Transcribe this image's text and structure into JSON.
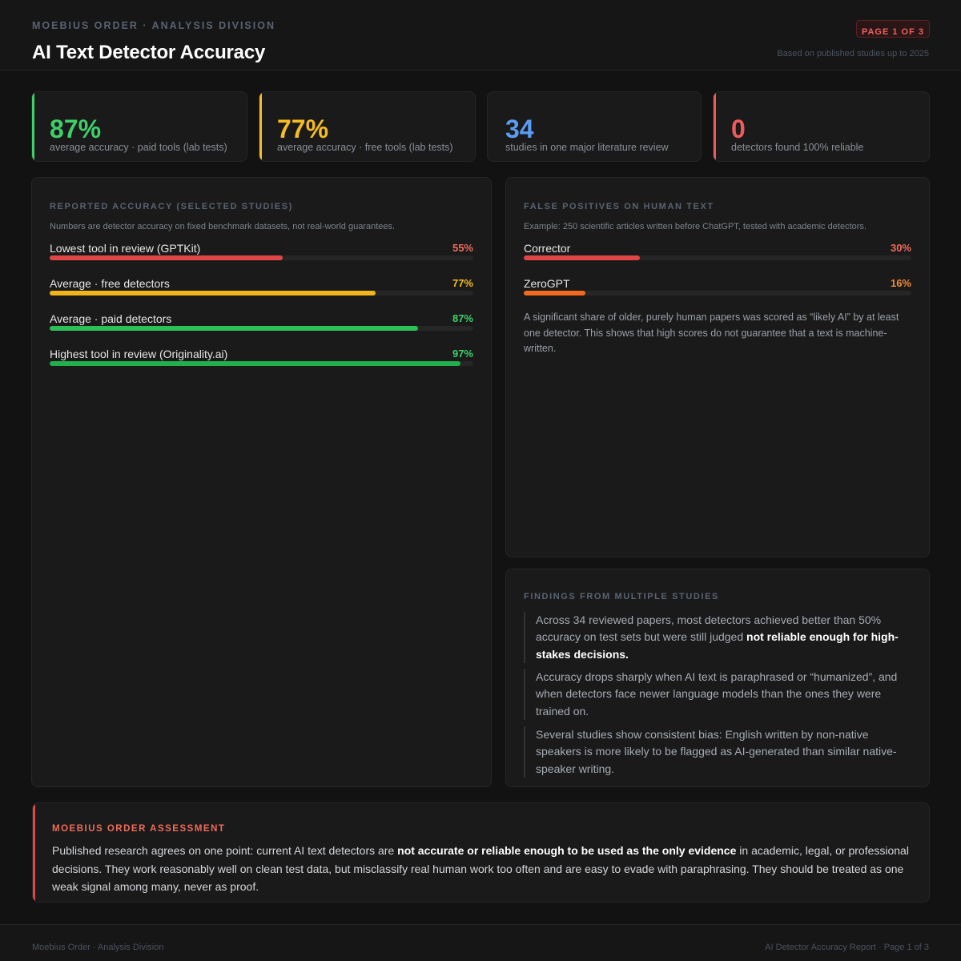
{
  "header": {
    "org": "MOEBIUS ORDER · ANALYSIS DIVISION",
    "title": "AI Text Detector Accuracy",
    "page_badge": "PAGE 1 OF 3",
    "based_on": "Based on published studies up to 2025"
  },
  "kpis": [
    {
      "value": "87%",
      "label": "average accuracy · paid tools (lab tests)",
      "color": "#3fcf6b"
    },
    {
      "value": "77%",
      "label": "average accuracy · free tools (lab tests)",
      "color": "#f5bd22"
    },
    {
      "value": "34",
      "label": "studies in one major literature review",
      "color": "#5b9cf2"
    },
    {
      "value": "0",
      "label": "detectors found 100% reliable",
      "color": "#ef5b5b"
    }
  ],
  "accuracy_panel": {
    "title": "REPORTED ACCURACY (SELECTED STUDIES)",
    "subtitle": "Numbers are detector accuracy on fixed benchmark datasets, not real-world guarantees.",
    "bars": [
      {
        "name": "Lowest tool in review (GPTKit)",
        "label": "55%",
        "value": 55,
        "color": "#e04646",
        "label_color": "#ef6b5b"
      },
      {
        "name": "Average · free detectors",
        "label": "77%",
        "value": 77,
        "color": "#f0b41c",
        "label_color": "#f5bd22"
      },
      {
        "name": "Average · paid detectors",
        "label": "87%",
        "value": 87,
        "color": "#2bbf55",
        "label_color": "#3fcf6b"
      },
      {
        "name": "Highest tool in review (Originality.ai)",
        "label": "97%",
        "value": 97,
        "color": "#22b04c",
        "label_color": "#3fcf6b"
      }
    ]
  },
  "false_positive_panel": {
    "title": "FALSE POSITIVES ON HUMAN TEXT",
    "subtitle": "Example: 250 scientific articles written before ChatGPT, tested with academic detectors.",
    "bars": [
      {
        "name": "Corrector",
        "label": "30%",
        "value": 30,
        "color": "#e04646",
        "label_color": "#ef6b5b"
      },
      {
        "name": "ZeroGPT",
        "label": "16%",
        "value": 16,
        "color": "#f26a1f",
        "label_color": "#f58a3a"
      }
    ],
    "note": "A significant share of older, purely human papers was scored as “likely AI” by at least one detector. This shows that high scores do not guarantee that a text is machine-written."
  },
  "findings_panel": {
    "title": "FINDINGS FROM MULTIPLE STUDIES",
    "items": [
      {
        "text": "Across 34 reviewed papers, most detectors achieved better than 50% accuracy on test sets but were still judged ",
        "bold": "not reliable enough for high-stakes decisions.",
        "after": ""
      },
      {
        "text": "Accuracy drops sharply when AI text is paraphrased or “humanized”, and when detectors face newer language models than the ones they were trained on.",
        "bold": "",
        "after": ""
      },
      {
        "text": "Several studies show consistent bias: English written by non-native speakers is more likely to be flagged as AI-generated than similar native-speaker writing.",
        "bold": "",
        "after": ""
      }
    ]
  },
  "assessment": {
    "title": "MOEBIUS ORDER ASSESSMENT",
    "text_before": "Published research agrees on one point: current AI text detectors are ",
    "bold": "not accurate or reliable enough to be used as the only evidence",
    "text_after": " in academic, legal, or professional decisions. They work reasonably well on clean test data, but misclassify real human work too often and are easy to evade with paraphrasing. They should be treated as one weak signal among many, never as proof."
  },
  "footer": {
    "left": "Moebius Order · Analysis Division",
    "right": "AI Detector Accuracy Report · Page 1 of 3"
  }
}
